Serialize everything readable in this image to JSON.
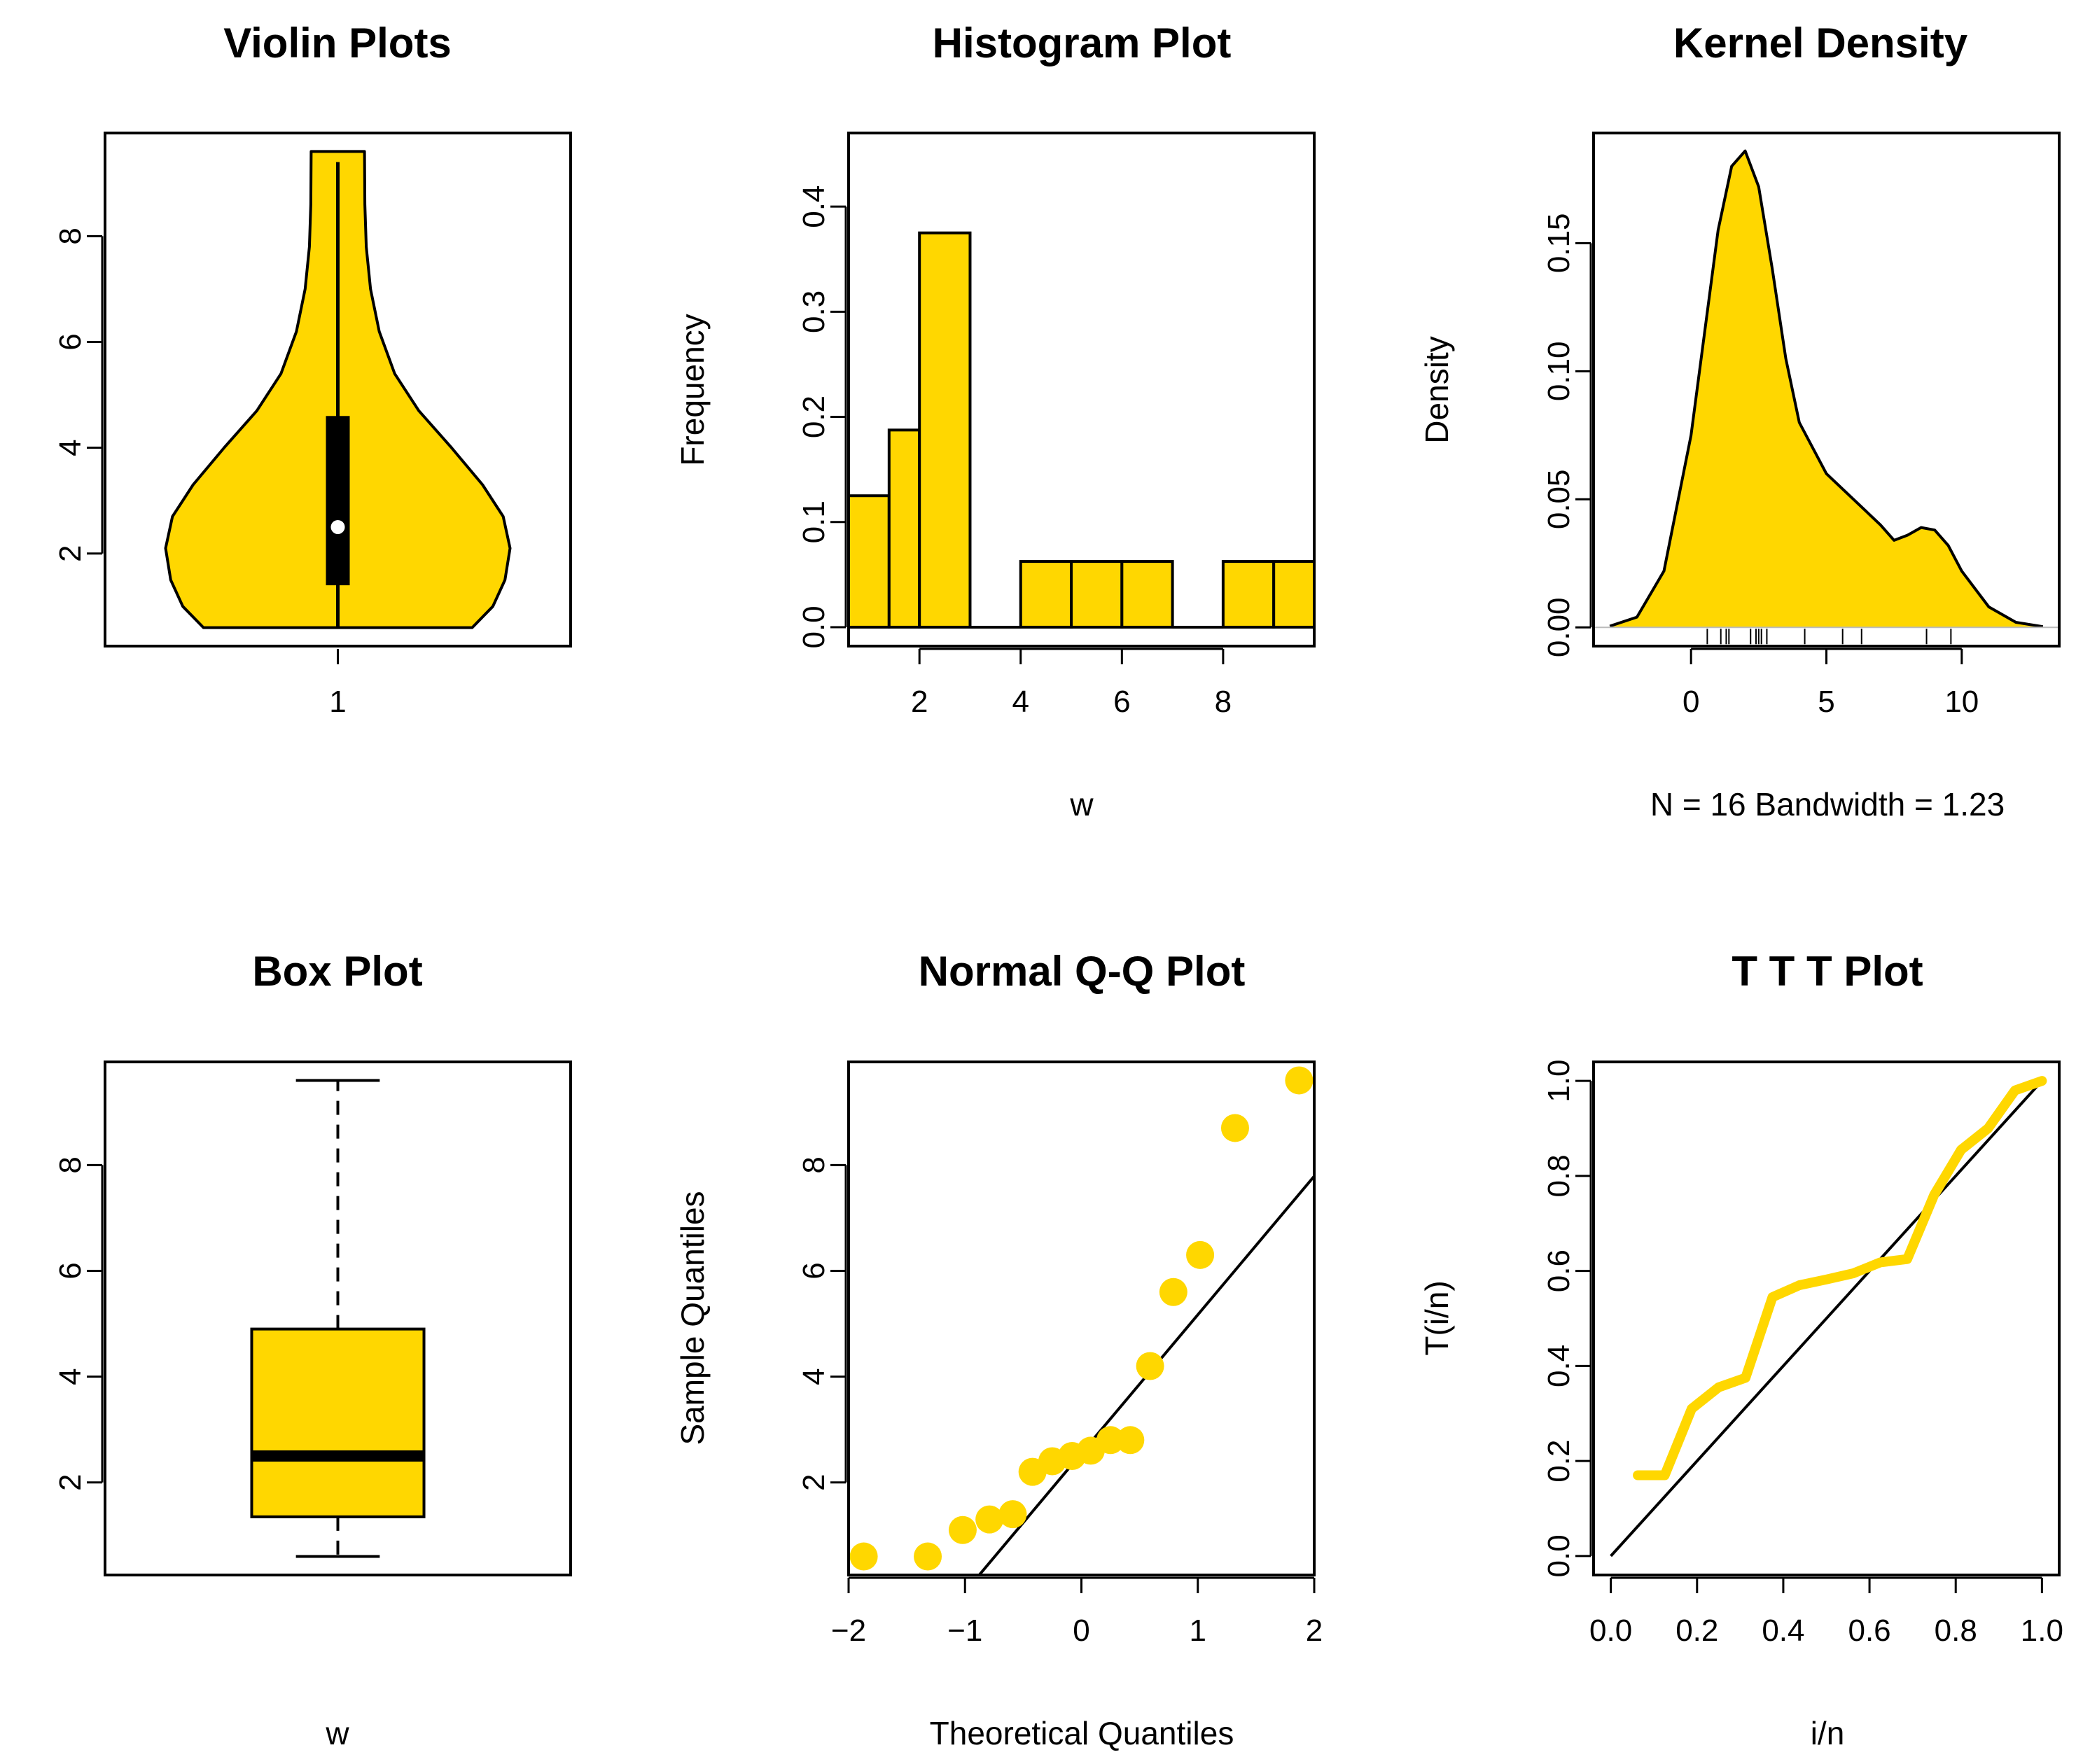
{
  "colors": {
    "fill": "#FFD700",
    "stroke": "#000000",
    "background": "#FFFFFF"
  },
  "chart_data": [
    {
      "type": "violin",
      "title": "Violin Plots",
      "xlabel": "",
      "ylabel": "",
      "x_tick_labels": [
        "1"
      ],
      "y_ticks": [
        2,
        4,
        6,
        8
      ],
      "y_tick_labels": [
        "2",
        "4",
        "6",
        "8"
      ],
      "ylim": [
        0.25,
        9.95
      ],
      "y_range": [
        0.6,
        9.6
      ],
      "whisker": [
        0.6,
        9.4
      ],
      "box": [
        1.4,
        4.6
      ],
      "median": 2.5,
      "density_profile": [
        {
          "y": 0.6,
          "w": 0.78
        },
        {
          "y": 1.0,
          "w": 0.9
        },
        {
          "y": 1.5,
          "w": 0.97
        },
        {
          "y": 2.1,
          "w": 1.0
        },
        {
          "y": 2.7,
          "w": 0.96
        },
        {
          "y": 3.3,
          "w": 0.84
        },
        {
          "y": 4.0,
          "w": 0.66
        },
        {
          "y": 4.7,
          "w": 0.47
        },
        {
          "y": 5.4,
          "w": 0.33
        },
        {
          "y": 6.2,
          "w": 0.24
        },
        {
          "y": 7.0,
          "w": 0.19
        },
        {
          "y": 7.8,
          "w": 0.165
        },
        {
          "y": 8.6,
          "w": 0.157
        },
        {
          "y": 9.6,
          "w": 0.155
        }
      ]
    },
    {
      "type": "histogram",
      "title": "Histogram Plot",
      "xlabel": "w",
      "ylabel": "Frequency",
      "x_ticks": [
        2,
        4,
        6,
        8
      ],
      "x_tick_labels": [
        "2",
        "4",
        "6",
        "8"
      ],
      "y_ticks": [
        0.0,
        0.1,
        0.2,
        0.3,
        0.4
      ],
      "y_tick_labels": [
        "0.0",
        "0.1",
        "0.2",
        "0.3",
        "0.4"
      ],
      "xlim": [
        0.6,
        9.8
      ],
      "ylim": [
        -0.018,
        0.47
      ],
      "bins": [
        {
          "from": 0.6,
          "to": 1.4,
          "value": 0.125
        },
        {
          "from": 1.4,
          "to": 2.0,
          "value": 0.1875
        },
        {
          "from": 2.0,
          "to": 3.0,
          "value": 0.375
        },
        {
          "from": 3.0,
          "to": 4.0,
          "value": 0.0
        },
        {
          "from": 4.0,
          "to": 5.0,
          "value": 0.0625
        },
        {
          "from": 5.0,
          "to": 6.0,
          "value": 0.0625
        },
        {
          "from": 6.0,
          "to": 7.0,
          "value": 0.0625
        },
        {
          "from": 7.0,
          "to": 8.0,
          "value": 0.0
        },
        {
          "from": 8.0,
          "to": 9.0,
          "value": 0.0625
        },
        {
          "from": 9.0,
          "to": 9.8,
          "value": 0.0625
        }
      ]
    },
    {
      "type": "area",
      "title": "Kernel Density",
      "xlabel": "N = 16   Bandwidth = 1.23",
      "ylabel": "Density",
      "x_ticks": [
        0,
        5,
        10
      ],
      "x_tick_labels": [
        "0",
        "5",
        "10"
      ],
      "y_ticks": [
        0.0,
        0.05,
        0.1,
        0.15
      ],
      "y_tick_labels": [
        "0.00",
        "0.05",
        "0.10",
        "0.15"
      ],
      "xlim": [
        -3.6,
        13.6
      ],
      "ylim": [
        -0.0073,
        0.193
      ],
      "x": [
        -3.0,
        -2.0,
        -1.0,
        0.0,
        0.5,
        1.0,
        1.5,
        2.0,
        2.5,
        3.0,
        3.5,
        4.0,
        5.0,
        6.0,
        7.0,
        7.5,
        8.0,
        8.5,
        9.0,
        9.5,
        10.0,
        11.0,
        12.0,
        13.0
      ],
      "y": [
        0.0005,
        0.004,
        0.022,
        0.075,
        0.115,
        0.155,
        0.18,
        0.186,
        0.172,
        0.14,
        0.105,
        0.08,
        0.06,
        0.05,
        0.04,
        0.034,
        0.036,
        0.039,
        0.038,
        0.032,
        0.022,
        0.008,
        0.002,
        0.0003
      ],
      "rug": [
        0.6,
        1.1,
        1.3,
        1.4,
        2.2,
        2.4,
        2.5,
        2.6,
        2.8,
        4.2,
        5.6,
        6.3,
        8.7,
        9.6
      ]
    },
    {
      "type": "box",
      "title": "Box Plot",
      "xlabel": "w",
      "ylabel": "",
      "y_ticks": [
        2,
        4,
        6,
        8
      ],
      "y_tick_labels": [
        "2",
        "4",
        "6",
        "8"
      ],
      "ylim": [
        0.25,
        9.95
      ],
      "min": 0.6,
      "q1": 1.35,
      "median": 2.5,
      "q3": 4.9,
      "max": 9.6
    },
    {
      "type": "scatter",
      "title": "Normal Q-Q Plot",
      "xlabel": "Theoretical Quantiles",
      "ylabel": "Sample Quantiles",
      "x_ticks": [
        -2,
        -1,
        0,
        1,
        2
      ],
      "x_tick_labels": [
        "−2",
        "−1",
        "0",
        "1",
        "2"
      ],
      "y_ticks": [
        2,
        4,
        6,
        8
      ],
      "y_tick_labels": [
        "2",
        "4",
        "6",
        "8"
      ],
      "xlim": [
        -2.0,
        2.0
      ],
      "ylim": [
        0.25,
        9.95
      ],
      "x": [
        -1.87,
        -1.32,
        -1.02,
        -0.79,
        -0.59,
        -0.42,
        -0.25,
        -0.08,
        0.08,
        0.25,
        0.42,
        0.59,
        0.79,
        1.02,
        1.32,
        1.87
      ],
      "y": [
        0.6,
        0.6,
        1.1,
        1.3,
        1.4,
        2.2,
        2.4,
        2.5,
        2.6,
        2.8,
        2.8,
        4.2,
        5.6,
        6.3,
        8.7,
        9.6
      ],
      "reference_line": {
        "intercept": 2.55,
        "slope": 2.62
      }
    },
    {
      "type": "line",
      "title": "T T T Plot",
      "xlabel": "i/n",
      "ylabel": "T(i/n)",
      "x_ticks": [
        0.0,
        0.2,
        0.4,
        0.6,
        0.8,
        1.0
      ],
      "x_tick_labels": [
        "0.0",
        "0.2",
        "0.4",
        "0.6",
        "0.8",
        "1.0"
      ],
      "y_ticks": [
        0.0,
        0.2,
        0.4,
        0.6,
        0.8,
        1.0
      ],
      "y_tick_labels": [
        "0.0",
        "0.2",
        "0.4",
        "0.6",
        "0.8",
        "1.0"
      ],
      "xlim": [
        -0.04,
        1.04
      ],
      "ylim": [
        -0.04,
        1.04
      ],
      "x": [
        0.0625,
        0.125,
        0.1875,
        0.25,
        0.3125,
        0.375,
        0.4375,
        0.5,
        0.5625,
        0.625,
        0.6875,
        0.75,
        0.8125,
        0.875,
        0.9375,
        1.0
      ],
      "y": [
        0.17,
        0.17,
        0.31,
        0.355,
        0.375,
        0.545,
        0.57,
        0.582,
        0.595,
        0.618,
        0.625,
        0.76,
        0.855,
        0.9,
        0.98,
        1.0
      ],
      "reference_line": {
        "from": [
          0,
          0
        ],
        "to": [
          1,
          1
        ]
      }
    }
  ]
}
